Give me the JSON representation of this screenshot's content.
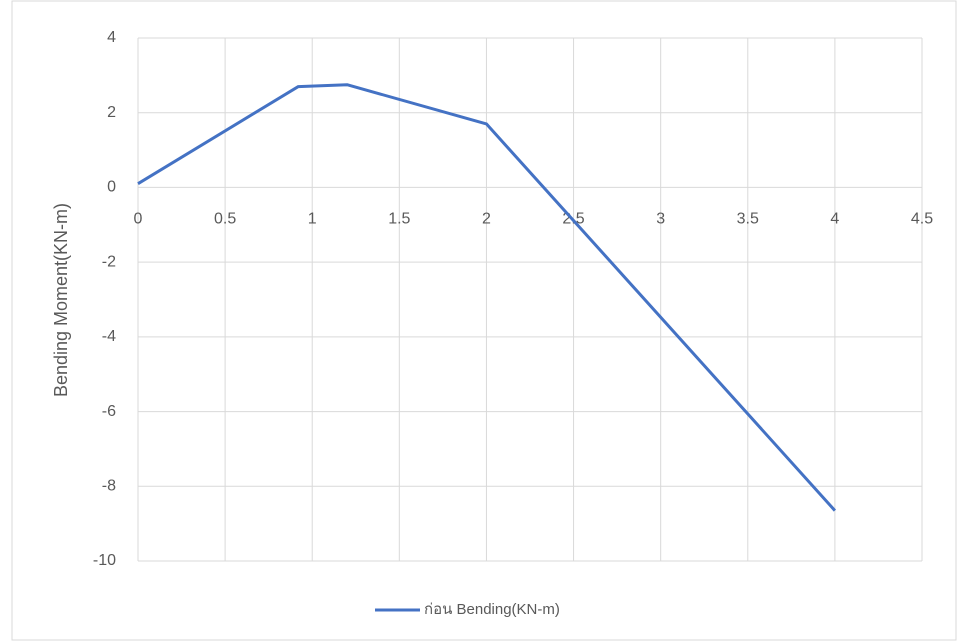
{
  "chart_data": {
    "type": "line",
    "y_label": "Bending Moment(KN-m)",
    "x": [
      0,
      0.92,
      1.2,
      2,
      4
    ],
    "series": [
      {
        "name": "ก่อน Bending(KN-m)",
        "color": "#4472c4",
        "values": [
          0.1,
          2.7,
          2.75,
          1.7,
          -8.65
        ]
      }
    ],
    "xlim": [
      0,
      4.5
    ],
    "xticks": [
      0,
      0.5,
      1,
      1.5,
      2,
      2.5,
      3,
      3.5,
      4,
      4.5
    ],
    "ylim": [
      -10,
      4
    ],
    "yticks": [
      -10,
      -8,
      -6,
      -4,
      -2,
      0,
      2,
      4
    ],
    "grid": true,
    "legend": "bottom"
  }
}
